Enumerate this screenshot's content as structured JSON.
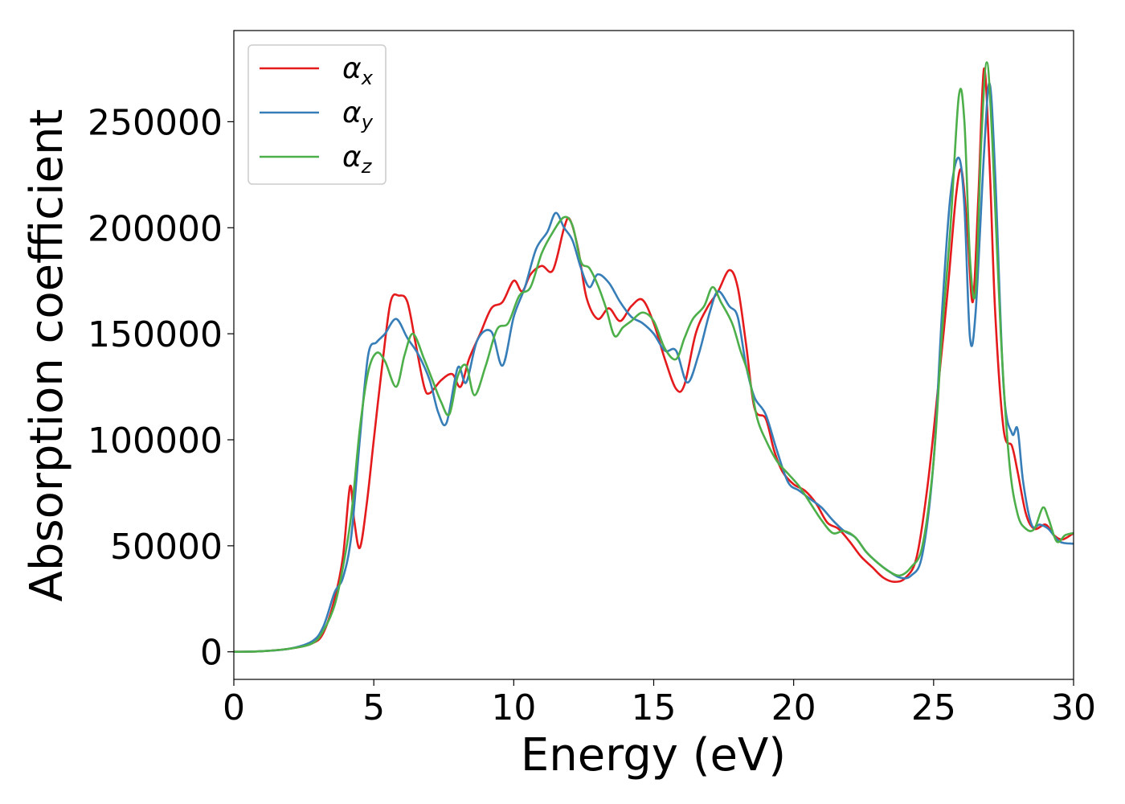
{
  "chart_data": {
    "type": "line",
    "xlabel": "Energy (eV)",
    "ylabel": "Absorption coefficient",
    "xlim": [
      0,
      30
    ],
    "ylim": [
      -13000,
      293000
    ],
    "xticks": [
      0,
      5,
      10,
      15,
      20,
      25,
      30
    ],
    "yticks": [
      0,
      50000,
      100000,
      150000,
      200000,
      250000
    ],
    "xtick_labels": [
      "0",
      "5",
      "10",
      "15",
      "20",
      "25",
      "30"
    ],
    "ytick_labels": [
      "0",
      "50000",
      "100000",
      "150000",
      "200000",
      "250000"
    ],
    "grid": false,
    "legend_position": "top-left",
    "series": [
      {
        "name": "αx",
        "symbol": "α",
        "subscript": "x",
        "color": "#e41a1c",
        "x": [
          0,
          1,
          2,
          2.8,
          3.2,
          3.6,
          3.9,
          4.15,
          4.3,
          4.5,
          4.75,
          5,
          5.3,
          5.6,
          5.9,
          6.2,
          6.5,
          6.8,
          7,
          7.4,
          7.8,
          8.1,
          8.4,
          8.8,
          9.2,
          9.6,
          10,
          10.3,
          10.6,
          11,
          11.4,
          11.8,
          12,
          12.3,
          12.6,
          13,
          13.4,
          13.8,
          14.2,
          14.6,
          15,
          15.4,
          15.8,
          16.1,
          16.5,
          16.9,
          17.3,
          17.7,
          18,
          18.3,
          18.6,
          19,
          19.3,
          19.6,
          20,
          20.4,
          20.8,
          21.2,
          21.6,
          22,
          22.4,
          22.8,
          23.2,
          23.6,
          24,
          24.4,
          24.8,
          25.2,
          25.5,
          25.8,
          26,
          26.2,
          26.4,
          26.6,
          26.8,
          27,
          27.2,
          27.5,
          27.8,
          28,
          28.3,
          28.6,
          29,
          29.3,
          29.6,
          30
        ],
        "values": [
          0,
          300,
          1500,
          4000,
          9000,
          25000,
          45000,
          78000,
          62000,
          49000,
          70000,
          100000,
          135000,
          165000,
          168000,
          165000,
          145000,
          125000,
          122000,
          128000,
          131000,
          125000,
          138000,
          150000,
          162000,
          165000,
          175000,
          170000,
          178000,
          182000,
          180000,
          200000,
          204000,
          190000,
          167000,
          157000,
          162000,
          156000,
          163000,
          166000,
          155000,
          138000,
          124000,
          126000,
          150000,
          162000,
          170000,
          180000,
          172000,
          145000,
          115000,
          110000,
          95000,
          85000,
          79000,
          76000,
          70000,
          61000,
          58000,
          52000,
          45000,
          40000,
          35000,
          33000,
          35000,
          45000,
          80000,
          130000,
          170000,
          215000,
          227000,
          200000,
          165000,
          215000,
          275000,
          230000,
          160000,
          105000,
          97000,
          85000,
          65000,
          58000,
          60000,
          55000,
          53000,
          56000
        ]
      },
      {
        "name": "αy",
        "symbol": "α",
        "subscript": "y",
        "color": "#377eb8",
        "x": [
          0,
          1,
          2,
          2.8,
          3.2,
          3.6,
          3.9,
          4.2,
          4.5,
          4.8,
          5.1,
          5.4,
          5.8,
          6.2,
          6.6,
          7,
          7.3,
          7.6,
          8,
          8.3,
          8.7,
          9.2,
          9.6,
          10,
          10.4,
          10.8,
          11.2,
          11.5,
          11.8,
          12.1,
          12.4,
          12.7,
          13,
          13.4,
          13.8,
          14.2,
          14.6,
          15,
          15.4,
          15.8,
          16.2,
          16.6,
          17,
          17.3,
          17.7,
          18,
          18.3,
          18.6,
          19,
          19.4,
          19.8,
          20.2,
          20.6,
          21,
          21.4,
          21.8,
          22.2,
          22.6,
          23,
          23.4,
          23.8,
          24.2,
          24.6,
          25,
          25.3,
          25.6,
          25.9,
          26.1,
          26.3,
          26.5,
          26.8,
          27,
          27.2,
          27.5,
          27.8,
          28,
          28.2,
          28.5,
          28.8,
          29.1,
          29.5,
          30
        ],
        "values": [
          0,
          300,
          1500,
          5000,
          12000,
          28000,
          35000,
          55000,
          100000,
          140000,
          146000,
          150000,
          157000,
          148000,
          140000,
          128000,
          113000,
          108000,
          134000,
          127000,
          147000,
          151000,
          135000,
          158000,
          172000,
          190000,
          198000,
          207000,
          200000,
          194000,
          181000,
          172000,
          178000,
          174000,
          165000,
          158000,
          155000,
          150000,
          142000,
          142000,
          127000,
          140000,
          160000,
          170000,
          163000,
          158000,
          135000,
          120000,
          112000,
          95000,
          80000,
          76000,
          72000,
          68000,
          62000,
          57000,
          54000,
          47000,
          42000,
          38000,
          35000,
          36000,
          46000,
          90000,
          160000,
          215000,
          233000,
          210000,
          148000,
          160000,
          235000,
          268000,
          225000,
          125000,
          103000,
          105000,
          80000,
          60000,
          60000,
          58000,
          52000,
          51000
        ]
      },
      {
        "name": "αz",
        "symbol": "α",
        "subscript": "z",
        "color": "#4daf4a",
        "x": [
          0,
          1,
          2,
          2.8,
          3.2,
          3.6,
          3.9,
          4.2,
          4.5,
          4.8,
          5.1,
          5.4,
          5.8,
          6.1,
          6.4,
          6.8,
          7.1,
          7.4,
          7.7,
          8,
          8.3,
          8.6,
          9,
          9.4,
          9.8,
          10.2,
          10.6,
          11,
          11.4,
          11.8,
          12.1,
          12.4,
          12.7,
          13,
          13.3,
          13.6,
          13.9,
          14.2,
          14.6,
          15,
          15.4,
          15.8,
          16.1,
          16.4,
          16.8,
          17.1,
          17.4,
          17.8,
          18.1,
          18.4,
          18.7,
          19,
          19.4,
          19.8,
          20.2,
          20.6,
          21,
          21.4,
          21.8,
          22.2,
          22.6,
          23,
          23.4,
          23.8,
          24.2,
          24.6,
          25,
          25.3,
          25.6,
          25.9,
          26.1,
          26.3,
          26.5,
          26.7,
          26.9,
          27.1,
          27.4,
          27.7,
          28,
          28.3,
          28.6,
          28.9,
          29.1,
          29.4,
          29.7,
          30
        ],
        "values": [
          0,
          300,
          1500,
          4000,
          10000,
          22000,
          40000,
          65000,
          105000,
          132000,
          141000,
          137000,
          125000,
          140000,
          150000,
          138000,
          128000,
          118000,
          112000,
          130000,
          135000,
          121000,
          135000,
          152000,
          155000,
          168000,
          172000,
          188000,
          198000,
          205000,
          201000,
          184000,
          181000,
          173000,
          162000,
          149000,
          153000,
          156000,
          160000,
          156000,
          143000,
          138000,
          148000,
          157000,
          163000,
          172000,
          165000,
          155000,
          142000,
          130000,
          110000,
          100000,
          90000,
          84000,
          78000,
          70000,
          62000,
          56000,
          57000,
          54000,
          47000,
          42000,
          38000,
          36000,
          40000,
          50000,
          90000,
          150000,
          200000,
          262000,
          250000,
          185000,
          170000,
          240000,
          278000,
          240000,
          150000,
          90000,
          65000,
          58000,
          58000,
          68000,
          63000,
          52000,
          55000,
          56000
        ]
      }
    ]
  }
}
